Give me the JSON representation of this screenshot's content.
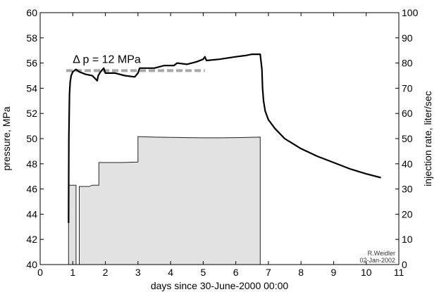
{
  "chart_data": {
    "type": "line",
    "xlabel": "days since 30-June-2000  00:00",
    "ylabel_left": "pressure, MPa",
    "ylabel_right": "injection rate, liter/sec",
    "xlim": [
      0,
      11
    ],
    "ylim_left": [
      40,
      60
    ],
    "ylim_right": [
      0,
      100
    ],
    "x_ticks": [
      0,
      1,
      2,
      3,
      4,
      5,
      6,
      7,
      8,
      9,
      10,
      11
    ],
    "y_ticks_left": [
      40,
      42,
      44,
      46,
      48,
      50,
      52,
      54,
      56,
      58,
      60
    ],
    "y_ticks_right": [
      0,
      10,
      20,
      30,
      40,
      50,
      60,
      70,
      80,
      90,
      100
    ],
    "grid": false,
    "annotation": "Δ p = 12 MPa",
    "delta_p_line": {
      "x": [
        0.8,
        5.05
      ],
      "y": 55.4
    },
    "credit": [
      "R.Weidler",
      "02-Jan-2002"
    ],
    "series": [
      {
        "axis": "left",
        "style": "line",
        "x": [
          0.87,
          0.88,
          0.9,
          0.92,
          0.95,
          1.0,
          1.05,
          1.1,
          1.2,
          1.4,
          1.6,
          1.75,
          1.78,
          1.85,
          1.95,
          2.0,
          2.3,
          2.6,
          2.9,
          3.0,
          3.05,
          3.2,
          3.5,
          3.8,
          4.1,
          4.2,
          4.5,
          4.8,
          5.0,
          5.05,
          5.1,
          5.5,
          6.0,
          6.3,
          6.5,
          6.75,
          6.8,
          6.82,
          6.85,
          6.9,
          7.0,
          7.2,
          7.5,
          8.0,
          8.5,
          9.0,
          9.5,
          10.0,
          10.45
        ],
        "y": [
          43.3,
          50.0,
          53.5,
          54.5,
          55.0,
          55.3,
          55.4,
          55.5,
          55.3,
          55.1,
          55.0,
          54.6,
          55.0,
          55.3,
          55.6,
          55.2,
          55.2,
          55.0,
          54.9,
          55.2,
          55.6,
          55.6,
          55.6,
          55.8,
          55.8,
          56.0,
          55.9,
          56.1,
          56.3,
          56.5,
          56.2,
          56.3,
          56.5,
          56.6,
          56.7,
          56.7,
          55.5,
          54.0,
          53.0,
          52.2,
          51.5,
          50.8,
          50.0,
          49.2,
          48.6,
          48.1,
          47.6,
          47.2,
          46.9
        ]
      },
      {
        "axis": "right",
        "style": "area",
        "x": [
          0.85,
          0.87,
          0.87,
          1.1,
          1.1,
          1.2,
          1.2,
          1.5,
          1.6,
          1.8,
          1.8,
          2.0,
          2.5,
          3.0,
          3.0,
          3.5,
          4.0,
          4.5,
          5.0,
          5.5,
          6.0,
          6.75,
          6.75
        ],
        "y": [
          0,
          0,
          31.5,
          31.5,
          0,
          0,
          31,
          31,
          31.5,
          31.5,
          40.5,
          40.5,
          40.5,
          40.7,
          50.8,
          50.6,
          50.5,
          50.4,
          50.3,
          50.3,
          50.4,
          50.6,
          0
        ]
      }
    ]
  }
}
